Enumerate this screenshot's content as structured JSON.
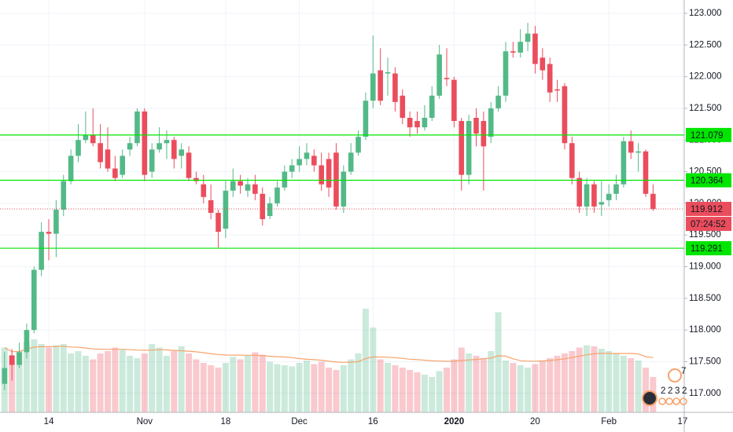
{
  "chart_data": {
    "type": "candlestick",
    "categories": [
      null,
      null,
      null,
      null,
      null,
      null,
      "14",
      null,
      null,
      null,
      null,
      null,
      null,
      null,
      null,
      null,
      null,
      null,
      null,
      "Nov",
      null,
      null,
      null,
      null,
      null,
      null,
      null,
      null,
      null,
      null,
      "18",
      null,
      null,
      null,
      null,
      null,
      null,
      null,
      null,
      null,
      "Dec",
      null,
      null,
      null,
      null,
      null,
      null,
      null,
      null,
      null,
      "16",
      null,
      null,
      null,
      null,
      null,
      null,
      null,
      null,
      null,
      null,
      "2020",
      null,
      null,
      null,
      null,
      null,
      null,
      null,
      null,
      null,
      null,
      "20",
      null,
      null,
      null,
      null,
      null,
      null,
      null,
      null,
      null,
      "Feb",
      null,
      null,
      null,
      null,
      null,
      null,
      null,
      null,
      null,
      "17"
    ],
    "open": [
      117.15,
      117.6,
      117.45,
      117.65,
      118.0,
      118.95,
      119.55,
      119.52,
      119.9,
      120.35,
      120.75,
      121.0,
      121.08,
      120.95,
      120.85,
      120.55,
      120.45,
      120.85,
      120.95,
      121.45,
      120.5,
      120.85,
      120.95,
      121.0,
      120.75,
      120.8,
      120.4,
      120.3,
      120.05,
      119.85,
      119.6,
      120.2,
      120.35,
      120.2,
      120.3,
      120.15,
      119.8,
      120.0,
      120.25,
      120.5,
      120.6,
      120.7,
      120.75,
      120.6,
      120.7,
      120.8,
      119.95,
      120.5,
      120.8,
      121.05,
      121.62,
      122.1,
      122.05,
      122.05,
      121.7,
      121.35,
      121.3,
      121.2,
      121.35,
      121.7,
      121.98,
      121.95,
      121.3,
      120.45,
      121.35,
      121.3,
      121.05,
      121.5,
      121.7,
      122.4,
      122.38,
      122.55,
      122.68,
      122.3,
      122.2,
      121.8,
      121.85,
      120.95,
      120.4,
      119.95,
      120.3,
      119.98,
      120.05,
      120.15,
      120.3,
      120.98,
      120.8,
      120.82,
      120.15,
      null,
      null,
      null,
      null
    ],
    "high": [
      117.65,
      117.7,
      117.8,
      118.1,
      119.0,
      119.7,
      119.75,
      120.05,
      120.45,
      120.85,
      121.25,
      121.45,
      121.5,
      121.25,
      121.2,
      120.75,
      120.85,
      121.05,
      121.5,
      121.5,
      120.95,
      121.2,
      121.15,
      121.05,
      120.95,
      120.9,
      120.5,
      120.45,
      120.3,
      119.9,
      120.35,
      120.55,
      120.45,
      120.4,
      120.45,
      120.25,
      120.1,
      120.35,
      120.6,
      120.7,
      120.9,
      120.95,
      120.85,
      120.8,
      120.8,
      120.95,
      120.6,
      120.95,
      121.15,
      121.75,
      122.65,
      122.45,
      122.3,
      122.15,
      121.8,
      121.45,
      121.45,
      121.55,
      121.85,
      122.5,
      122.45,
      122.0,
      121.35,
      121.4,
      121.5,
      121.45,
      121.6,
      121.85,
      122.55,
      122.55,
      122.75,
      122.85,
      122.8,
      122.45,
      122.3,
      121.95,
      121.9,
      121.05,
      120.5,
      120.4,
      120.35,
      120.35,
      120.3,
      120.45,
      121.05,
      121.15,
      120.95,
      120.85,
      120.3,
      null,
      null,
      null,
      null
    ],
    "low": [
      117.05,
      117.2,
      117.4,
      117.55,
      117.95,
      118.85,
      119.1,
      119.15,
      119.8,
      120.3,
      120.65,
      120.95,
      120.9,
      120.55,
      120.5,
      120.35,
      120.4,
      120.75,
      120.9,
      120.35,
      120.4,
      120.8,
      120.7,
      120.55,
      120.55,
      120.35,
      120.3,
      120.0,
      119.75,
      119.3,
      119.45,
      120.1,
      120.15,
      120.1,
      120.05,
      119.65,
      119.75,
      119.95,
      120.2,
      120.4,
      120.5,
      120.6,
      120.5,
      120.2,
      120.1,
      119.9,
      119.85,
      120.45,
      120.75,
      121.0,
      121.5,
      121.55,
      121.7,
      121.45,
      121.25,
      121.05,
      121.1,
      121.15,
      121.3,
      121.65,
      121.85,
      121.2,
      120.2,
      120.3,
      120.9,
      120.2,
      120.95,
      121.45,
      121.6,
      122.3,
      122.3,
      122.4,
      122.05,
      121.95,
      121.6,
      121.6,
      120.85,
      120.3,
      119.85,
      119.8,
      119.85,
      119.8,
      119.95,
      120.05,
      120.25,
      120.7,
      120.5,
      120.1,
      119.88,
      null,
      null,
      null,
      null
    ],
    "close": [
      117.4,
      117.45,
      117.65,
      118.0,
      118.95,
      119.55,
      119.52,
      119.9,
      120.35,
      120.75,
      121.0,
      121.08,
      120.95,
      120.65,
      120.55,
      120.4,
      120.75,
      120.95,
      121.45,
      120.45,
      120.85,
      120.95,
      121.0,
      120.7,
      120.85,
      120.4,
      120.35,
      120.1,
      119.85,
      119.55,
      120.2,
      120.35,
      120.28,
      120.3,
      120.15,
      119.75,
      120.0,
      120.25,
      120.5,
      120.6,
      120.7,
      120.8,
      120.6,
      120.3,
      120.25,
      119.95,
      120.5,
      120.8,
      121.05,
      121.62,
      122.05,
      121.62,
      122.07,
      121.6,
      121.35,
      121.2,
      121.2,
      121.35,
      121.7,
      122.35,
      121.96,
      121.3,
      120.45,
      121.3,
      121.1,
      120.9,
      121.5,
      121.7,
      122.4,
      122.38,
      122.55,
      122.68,
      122.2,
      122.1,
      121.75,
      121.78,
      120.95,
      120.4,
      119.95,
      120.3,
      119.95,
      120.02,
      120.15,
      120.3,
      120.98,
      120.8,
      120.82,
      120.15,
      119.912,
      null,
      null,
      null,
      null
    ],
    "volume": [
      55,
      48,
      52,
      60,
      62,
      58,
      55,
      57,
      58,
      50,
      52,
      48,
      45,
      50,
      52,
      55,
      53,
      48,
      46,
      50,
      58,
      55,
      48,
      52,
      56,
      50,
      45,
      42,
      40,
      38,
      42,
      47,
      45,
      48,
      51,
      49,
      43,
      41,
      40,
      39,
      42,
      44,
      41,
      43,
      38,
      36,
      40,
      45,
      50,
      88,
      72,
      45,
      42,
      40,
      38,
      36,
      34,
      32,
      30,
      35,
      38,
      45,
      55,
      50,
      48,
      46,
      52,
      85,
      44,
      42,
      40,
      38,
      41,
      44,
      46,
      48,
      50,
      52,
      55,
      57,
      56,
      54,
      52,
      50,
      48,
      46,
      44,
      38,
      30,
      null,
      null,
      null,
      null
    ],
    "volume_ma_period": 20,
    "ylim": [
      116.7,
      123.21
    ],
    "yticks": [
      {
        "value": 117,
        "label": "117.000"
      },
      {
        "value": 117.5,
        "label": "117.500"
      },
      {
        "value": 118,
        "label": "118.000"
      },
      {
        "value": 118.5,
        "label": "118.500"
      },
      {
        "value": 119,
        "label": "119.000"
      },
      {
        "value": 119.5,
        "label": "119.500"
      },
      {
        "value": 120,
        "label": "120.000"
      },
      {
        "value": 120.5,
        "label": "120.500"
      },
      {
        "value": 121,
        "label": "121.000"
      },
      {
        "value": 121.5,
        "label": "121.500"
      },
      {
        "value": 122,
        "label": "122.000"
      },
      {
        "value": 122.5,
        "label": "122.500"
      },
      {
        "value": 123,
        "label": "123.000"
      }
    ],
    "vlim": [
      0,
      100
    ],
    "grid": true,
    "up_color": "#53b987",
    "down_color": "#eb4d5c",
    "levels": [
      121.079,
      120.364,
      119.291
    ],
    "level_color": "#00e600",
    "countdown": "07:24:52",
    "badges": [
      "7",
      "2",
      "2",
      "3",
      "2"
    ]
  }
}
